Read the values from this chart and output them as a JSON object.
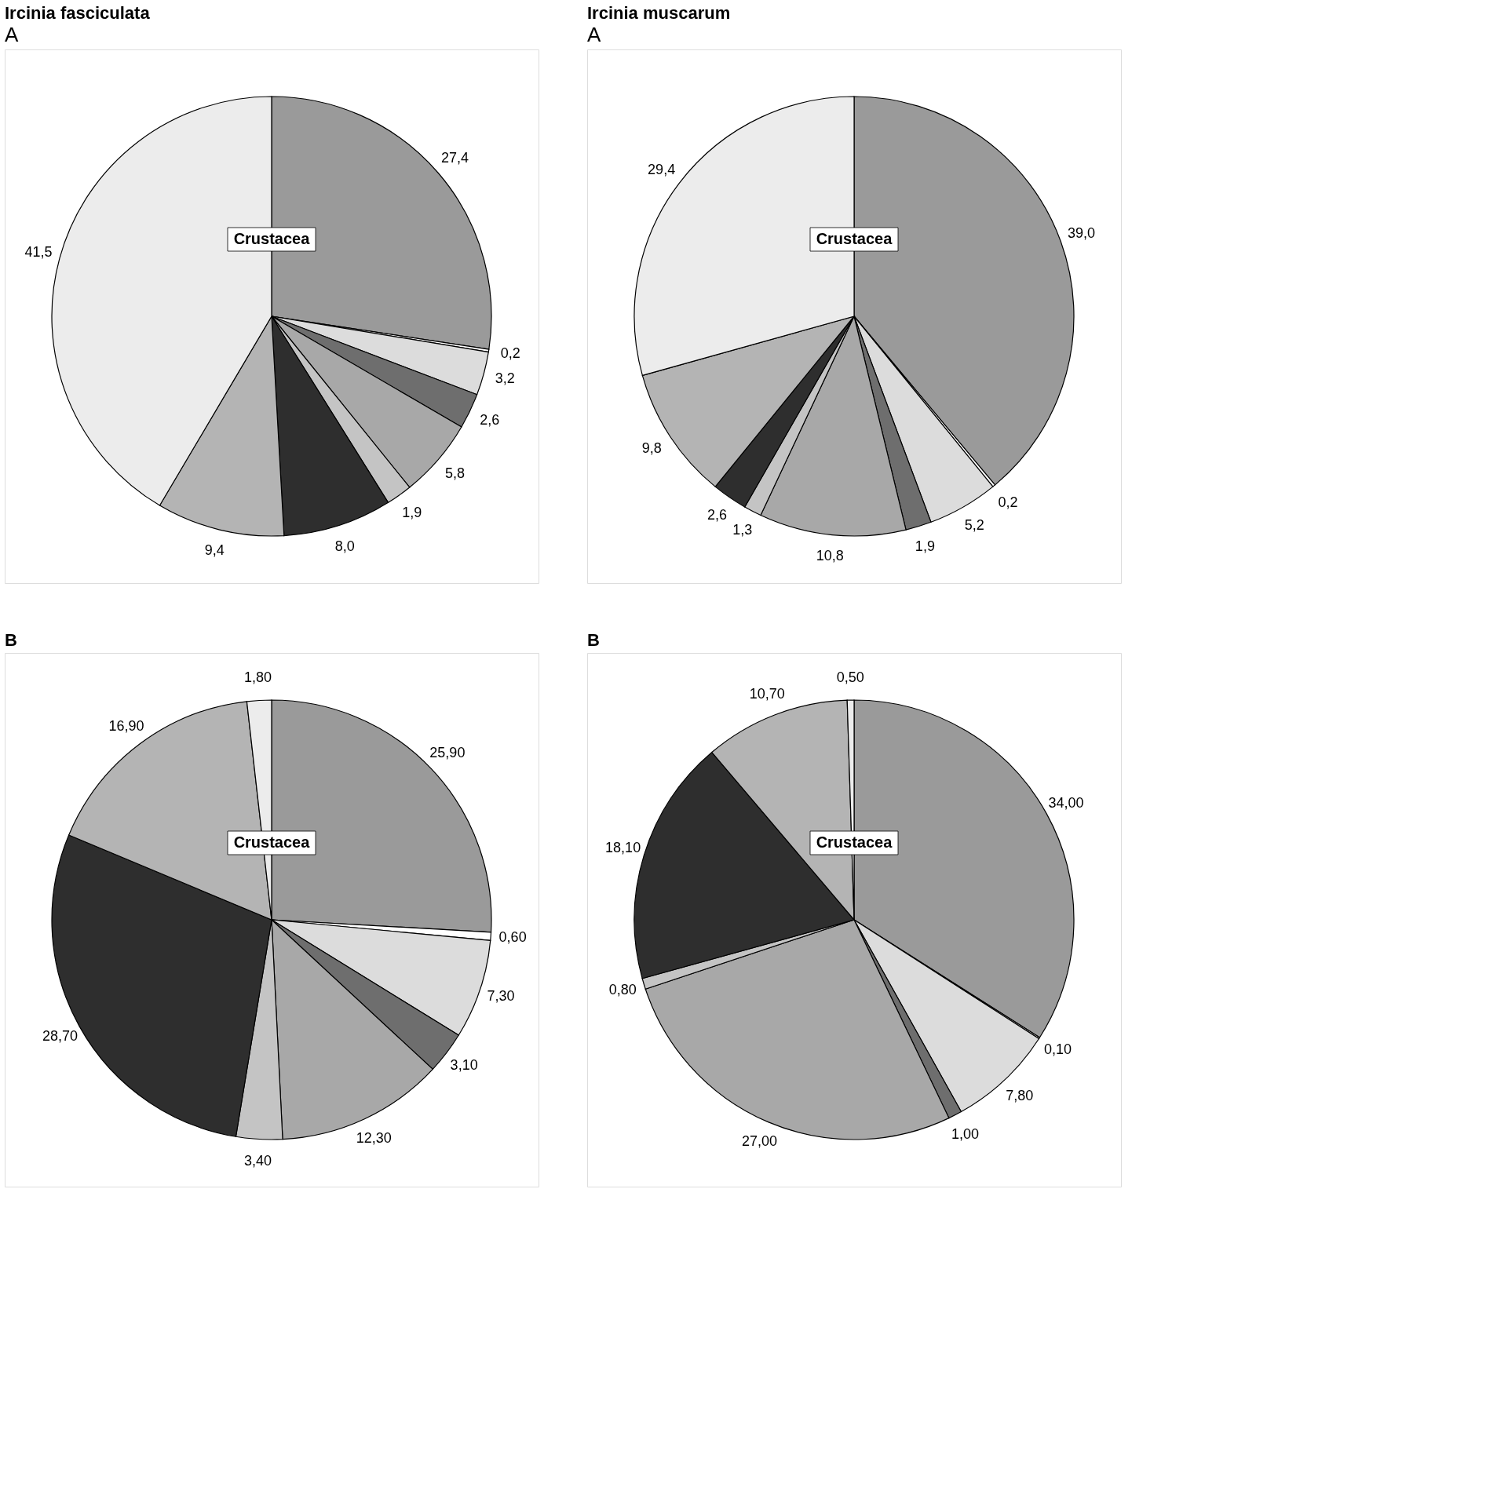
{
  "chart_data": [
    {
      "type": "pie",
      "title": "Ircinia fasciculata",
      "subtitle": "A",
      "categories": [
        null,
        null,
        null,
        null,
        null,
        null,
        null,
        null,
        null
      ],
      "values": [
        27.4,
        0.2,
        3.2,
        2.6,
        5.8,
        1.9,
        8.0,
        9.4,
        41.5
      ],
      "value_labels": [
        "27,4",
        "0,2",
        "3,2",
        "2,6",
        "5,8",
        "1,9",
        "8,0",
        "9,4",
        "41,5"
      ],
      "colors": [
        "#9a9a9a",
        "#ffffff",
        "#dcdcdc",
        "#6e6e6e",
        "#a8a8a8",
        "#c4c4c4",
        "#2e2e2e",
        "#b4b4b4",
        "#ececec"
      ],
      "annotations": [
        "Crustacea"
      ],
      "legend": false
    },
    {
      "type": "pie",
      "title": "Ircinia muscarum",
      "subtitle": "A",
      "categories": [
        null,
        null,
        null,
        null,
        null,
        null,
        null,
        null,
        null
      ],
      "values": [
        39.0,
        0.2,
        5.2,
        1.9,
        10.8,
        1.3,
        2.6,
        9.8,
        29.4
      ],
      "value_labels": [
        "39,0",
        "0,2",
        "5,2",
        "1,9",
        "10,8",
        "1,3",
        "2,6",
        "9,8",
        "29,4"
      ],
      "colors": [
        "#9a9a9a",
        "#ffffff",
        "#dcdcdc",
        "#6e6e6e",
        "#a8a8a8",
        "#c4c4c4",
        "#2e2e2e",
        "#b4b4b4",
        "#ececec"
      ],
      "annotations": [
        "Crustacea"
      ],
      "legend": false
    },
    {
      "type": "pie",
      "title": "B",
      "categories": [
        null,
        null,
        null,
        null,
        null,
        null,
        null,
        null,
        null
      ],
      "values": [
        25.9,
        0.6,
        7.3,
        3.1,
        12.3,
        3.4,
        28.7,
        16.9,
        1.8
      ],
      "value_labels": [
        "25,90",
        "0,60",
        "7,30",
        "3,10",
        "12,30",
        "3,40",
        "28,70",
        "16,90",
        "1,80"
      ],
      "colors": [
        "#9a9a9a",
        "#ffffff",
        "#dcdcdc",
        "#6e6e6e",
        "#a8a8a8",
        "#c4c4c4",
        "#2e2e2e",
        "#b4b4b4",
        "#ececec"
      ],
      "annotations": [
        "Crustacea"
      ],
      "legend": false
    },
    {
      "type": "pie",
      "title": "B",
      "categories": [
        null,
        null,
        null,
        null,
        null,
        null,
        null,
        null,
        null
      ],
      "values": [
        34.0,
        0.1,
        7.8,
        1.0,
        27.0,
        0.8,
        18.1,
        10.7,
        0.5
      ],
      "value_labels": [
        "34,00",
        "0,10",
        "7,80",
        "1,00",
        "27,00",
        "0,80",
        "18,10",
        "10,70",
        "0,50"
      ],
      "colors": [
        "#9a9a9a",
        "#ffffff",
        "#dcdcdc",
        "#6e6e6e",
        "#a8a8a8",
        "#c4c4c4",
        "#2e2e2e",
        "#b4b4b4",
        "#ececec"
      ],
      "annotations": [
        "Crustacea"
      ],
      "legend": false
    }
  ]
}
